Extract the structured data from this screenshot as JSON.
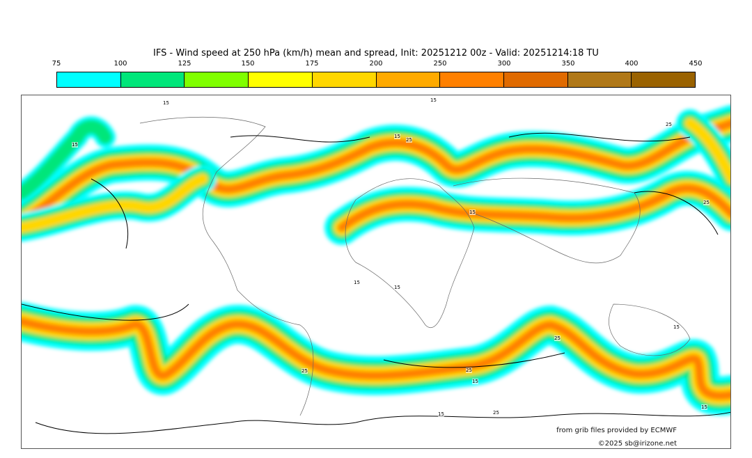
{
  "title": "IFS - Wind speed at 250 hPa (km/h) mean and spread, Init: 20251212 00z - Valid: 20251214:18 TU",
  "colorbar": {
    "ticks": [
      "75",
      "100",
      "125",
      "150",
      "175",
      "200",
      "250",
      "300",
      "350",
      "400",
      "450"
    ],
    "colors": [
      "#00ffff",
      "#00e67a",
      "#80ff00",
      "#ffff00",
      "#ffd700",
      "#ffaa00",
      "#ff8000",
      "#e06a00",
      "#b07818",
      "#9a6200"
    ]
  },
  "contour_labels": [
    "15",
    "15",
    "15",
    "25",
    "15",
    "25",
    "15",
    "15",
    "25",
    "15",
    "25",
    "15",
    "25",
    "25",
    "15",
    "15",
    "15",
    "25"
  ],
  "credits": {
    "source": "from grib files provided by ECMWF",
    "copyright": "©2025 sb@irizone.net"
  }
}
